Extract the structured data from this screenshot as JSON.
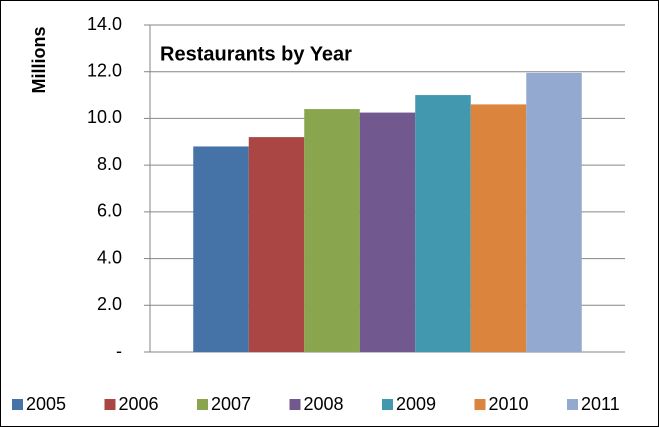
{
  "chart_data": {
    "type": "bar",
    "title": "Restaurants  by Year",
    "y_label": "Millions",
    "series": [
      {
        "name": "2005",
        "color": "#4572a7",
        "values": [
          8.8
        ]
      },
      {
        "name": "2006",
        "color": "#aa4643",
        "values": [
          9.2
        ]
      },
      {
        "name": "2007",
        "color": "#89a54e",
        "values": [
          10.4
        ]
      },
      {
        "name": "2008",
        "color": "#71588f",
        "values": [
          10.25
        ]
      },
      {
        "name": "2009",
        "color": "#4198af",
        "values": [
          11.0
        ]
      },
      {
        "name": "2010",
        "color": "#db843d",
        "values": [
          10.6
        ]
      },
      {
        "name": "2011",
        "color": "#93a9cf",
        "values": [
          11.95
        ]
      }
    ],
    "ylim": [
      0,
      14
    ],
    "yticks": [
      {
        "value": 0,
        "label": "-"
      },
      {
        "value": 2,
        "label": "2.0"
      },
      {
        "value": 4,
        "label": "4.0"
      },
      {
        "value": 6,
        "label": "6.0"
      },
      {
        "value": 8,
        "label": "8.0"
      },
      {
        "value": 10,
        "label": "10.0"
      },
      {
        "value": 12,
        "label": "12.0"
      },
      {
        "value": 14,
        "label": "14.0"
      }
    ],
    "grid": true,
    "legend": "bottom"
  }
}
